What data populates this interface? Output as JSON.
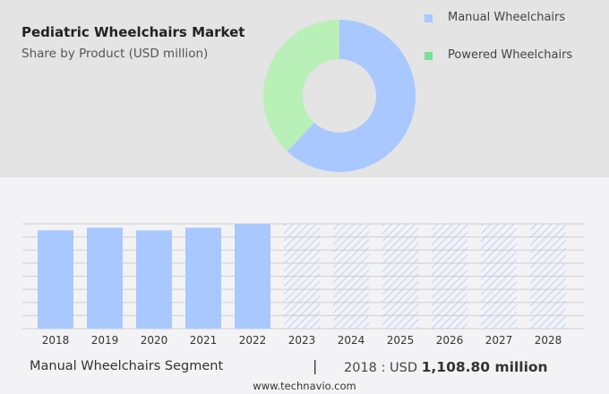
{
  "header": {
    "title": "Pediatric Wheelchairs Market",
    "subtitle": "Share by Product (USD million)"
  },
  "footer": {
    "segment": "Manual Wheelchairs Segment",
    "separator": "|",
    "year_label": "2018 : USD",
    "value": "1,108.80 million",
    "website": "www.technavio.com"
  },
  "chart_data": [
    {
      "type": "pie",
      "subtype": "donut",
      "legend_placement": "right",
      "slices": [
        {
          "name": "Manual Wheelchairs",
          "share": 62,
          "color": "#a8c8ff"
        },
        {
          "name": "Powered Wheelchairs",
          "share": 38,
          "color": "#b8f0b8",
          "legend_color": "#77e296"
        }
      ]
    },
    {
      "type": "bar",
      "categories": [
        "2018",
        "2019",
        "2020",
        "2021",
        "2022",
        "2023",
        "2024",
        "2025",
        "2026",
        "2027",
        "2028"
      ],
      "values": [
        1108.8,
        1139,
        1108,
        1139,
        1182,
        null,
        null,
        null,
        null,
        null,
        null
      ],
      "forecast_categories": [
        "2023",
        "2024",
        "2025",
        "2026",
        "2027",
        "2028"
      ],
      "forecast_style": "hatched",
      "color": "#a8c8ff",
      "grid": true,
      "ylim": [
        0,
        1182
      ]
    }
  ]
}
